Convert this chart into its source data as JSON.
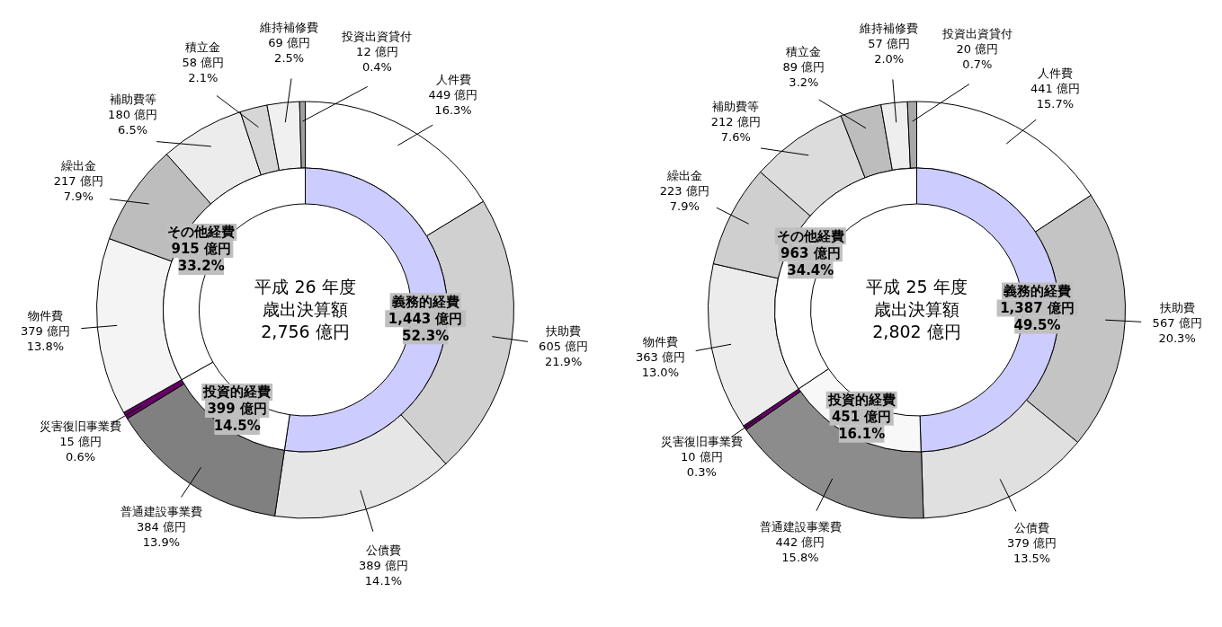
{
  "chart_data": [
    {
      "type": "donut",
      "categories": [
        "人件費",
        "扶助費",
        "公債費",
        "普通建設事業費",
        "災害復旧事業費",
        "物件費",
        "繰出金",
        "補助費等",
        "積立金",
        "維持補修費",
        "投資出資貸付"
      ],
      "values": [
        449,
        605,
        389,
        384,
        15,
        379,
        217,
        180,
        58,
        69,
        12
      ],
      "colors": [
        "#ffffff",
        "#d0d0d0",
        "#e6e6e6",
        "#808080",
        "#660066",
        "#f4f4f4",
        "#bdbdbd",
        "#ececec",
        "#d6d6d6",
        "#f0f0f0",
        "#a0a0a0"
      ],
      "value_labels": [
        "449 億円\n16.3%",
        "605 億円\n21.9%",
        "389 億円\n14.1%",
        "384 億円\n13.9%",
        "15 億円\n0.6%",
        "379 億円\n13.8%",
        "217 億円\n7.9%",
        "180 億円\n6.5%",
        "58 億円\n2.1%",
        "69 億円\n2.5%",
        "12 億円\n0.4%"
      ]
    },
    {
      "type": "donut",
      "categories": [
        "義務的経費",
        "投資的経費",
        "その他経費"
      ],
      "values": [
        1443,
        399,
        915
      ],
      "colors": [
        "#ccccff",
        "#ffffff",
        "#ffffff"
      ],
      "value_labels": [
        "1,443 億円\n52.3%",
        "399 億円\n14.5%",
        "915 億円\n33.2%"
      ],
      "annotations": [
        "平成 26 年度",
        "歳出決算額",
        "2,756 億円"
      ]
    },
    {
      "type": "donut",
      "categories": [
        "人件費",
        "扶助費",
        "公債費",
        "普通建設事業費",
        "災害復旧事業費",
        "物件費",
        "繰出金",
        "補助費等",
        "積立金",
        "維持補修費",
        "投資出資貸付"
      ],
      "values": [
        441,
        567,
        379,
        442,
        10,
        363,
        223,
        212,
        89,
        57,
        20
      ],
      "colors": [
        "#ffffff",
        "#c4c4c4",
        "#e0e0e0",
        "#8c8c8c",
        "#660066",
        "#ececec",
        "#cfcfcf",
        "#dcdcdc",
        "#bdbdbd",
        "#eeeeee",
        "#a8a8a8"
      ],
      "value_labels": [
        "441 億円\n15.7%",
        "567 億円\n20.3%",
        "379 億円\n13.5%",
        "442 億円\n15.8%",
        "10 億円\n0.3%",
        "363 億円\n13.0%",
        "223 億円\n7.9%",
        "212 億円\n7.6%",
        "89 億円\n3.2%",
        "57 億円\n2.0%",
        "20 億円\n0.7%"
      ]
    },
    {
      "type": "donut",
      "categories": [
        "義務的経費",
        "投資的経費",
        "その他経費"
      ],
      "values": [
        1387,
        451,
        963
      ],
      "colors": [
        "#ccccff",
        "#f8f8f8",
        "#ffffff"
      ],
      "value_labels": [
        "1,387 億円\n49.5%",
        "451 億円\n16.1%",
        "963 億円\n34.4%"
      ],
      "annotations": [
        "平成 25 年度",
        "歳出決算額",
        "2,802 億円"
      ]
    }
  ]
}
